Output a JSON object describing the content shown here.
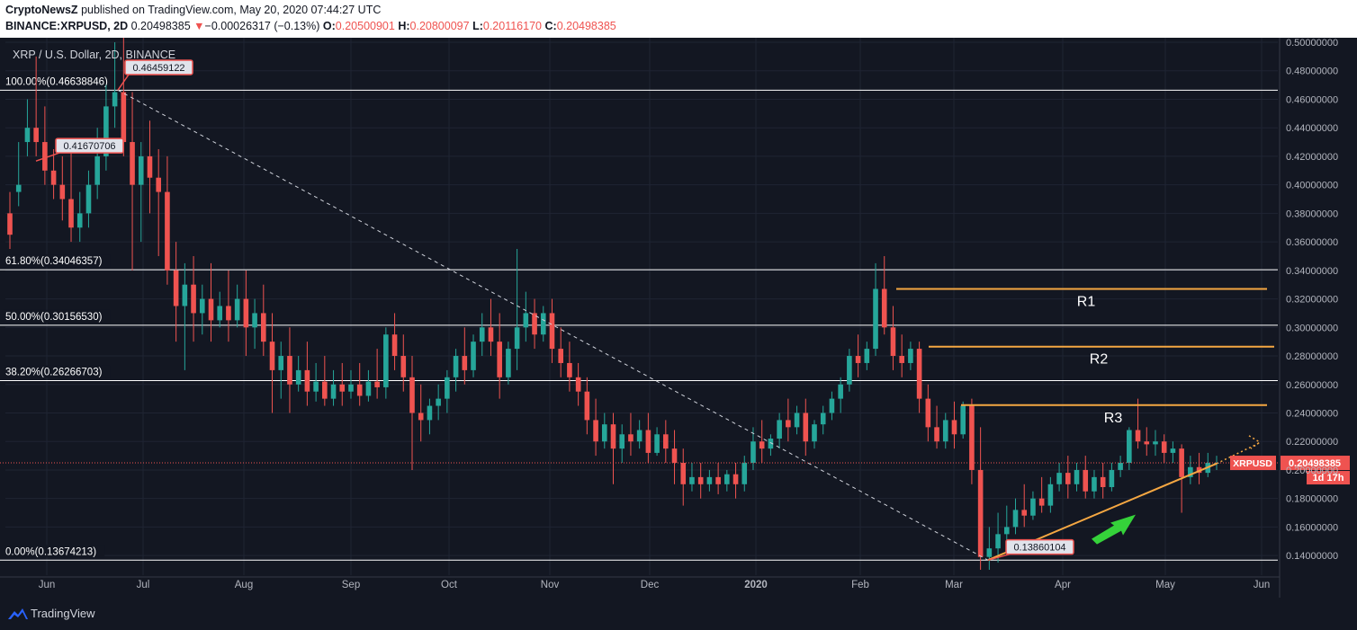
{
  "header": {
    "author": "CryptoNewsZ",
    "published_text": "published on TradingView.com, May 20, 2020 07:44:27 UTC",
    "symbol_line": "BINANCE:XRPUSD, 2D",
    "last_price": "0.20498385",
    "change_arrow": "▼",
    "change": "−0.00026317 (−0.13%)",
    "o_label": "O:",
    "o_value": "0.20500901",
    "h_label": "H:",
    "h_value": "0.20800097",
    "l_label": "L:",
    "l_value": "0.20116170",
    "c_label": "C:",
    "c_value": "0.20498385"
  },
  "chart_title": "XRP / U.S. Dollar, 2D, BINANCE",
  "footer": {
    "brand": "TradingView",
    "logo_icon": "tradingview-logo-icon"
  },
  "colors": {
    "background": "#131722",
    "up": "#26a69a",
    "down": "#ef5350",
    "fib": "#ffffff",
    "resistance": "#f5a742",
    "arrow": "#35d23a"
  },
  "chart_data": {
    "type": "candlestick",
    "symbol": "XRPUSD",
    "timeframe": "2D",
    "ylim": [
      0.13,
      0.5
    ],
    "y_ticks": [
      "0.14000000",
      "0.16000000",
      "0.18000000",
      "0.20000000",
      "0.22000000",
      "0.24000000",
      "0.26000000",
      "0.28000000",
      "0.30000000",
      "0.32000000",
      "0.34000000",
      "0.36000000",
      "0.38000000",
      "0.40000000",
      "0.42000000",
      "0.44000000",
      "0.46000000",
      "0.48000000",
      "0.50000000"
    ],
    "x_ticks": [
      "Jun",
      "Jul",
      "Aug",
      "Sep",
      "Oct",
      "Nov",
      "Dec",
      "2020",
      "Feb",
      "Mar",
      "Apr",
      "May",
      "Jun"
    ],
    "grid": true,
    "fib_levels": [
      {
        "label": "100.00%(0.46638846)",
        "value": 0.46638846
      },
      {
        "label": "61.80%(0.34046357)",
        "value": 0.34046357
      },
      {
        "label": "50.00%(0.30156530)",
        "value": 0.3015653
      },
      {
        "label": "38.20%(0.26266703)",
        "value": 0.26266703
      },
      {
        "label": "0.00%(0.13674213)",
        "value": 0.13674213
      }
    ],
    "resistance_levels": [
      {
        "name": "R1",
        "value": 0.327
      },
      {
        "name": "R2",
        "value": 0.2865
      },
      {
        "name": "R3",
        "value": 0.2455
      }
    ],
    "price_labels": [
      {
        "text": "0.46459122",
        "value": 0.46459122
      },
      {
        "text": "0.41670706",
        "value": 0.41670706
      },
      {
        "text": "0.13860104",
        "value": 0.13860104
      }
    ],
    "current_price": {
      "symbol": "XRPUSD",
      "price": "0.20498385",
      "countdown": "1d 17h",
      "value": 0.20498385
    },
    "candles": [
      [
        0.38,
        0.395,
        0.365,
        0.355
      ],
      [
        0.395,
        0.43,
        0.4,
        0.385
      ],
      [
        0.43,
        0.46,
        0.44,
        0.42
      ],
      [
        0.44,
        0.49,
        0.43,
        0.42
      ],
      [
        0.43,
        0.455,
        0.41,
        0.4
      ],
      [
        0.41,
        0.425,
        0.4,
        0.39
      ],
      [
        0.4,
        0.42,
        0.39,
        0.375
      ],
      [
        0.39,
        0.43,
        0.37,
        0.36
      ],
      [
        0.37,
        0.395,
        0.38,
        0.36
      ],
      [
        0.38,
        0.41,
        0.4,
        0.37
      ],
      [
        0.4,
        0.44,
        0.42,
        0.39
      ],
      [
        0.42,
        0.47,
        0.455,
        0.41
      ],
      [
        0.455,
        0.5,
        0.465,
        0.44
      ],
      [
        0.465,
        0.51,
        0.43,
        0.42
      ],
      [
        0.43,
        0.465,
        0.4,
        0.34
      ],
      [
        0.4,
        0.43,
        0.42,
        0.36
      ],
      [
        0.42,
        0.445,
        0.405,
        0.38
      ],
      [
        0.405,
        0.425,
        0.395,
        0.35
      ],
      [
        0.395,
        0.42,
        0.34,
        0.33
      ],
      [
        0.34,
        0.36,
        0.315,
        0.29
      ],
      [
        0.315,
        0.345,
        0.33,
        0.27
      ],
      [
        0.33,
        0.35,
        0.31,
        0.29
      ],
      [
        0.31,
        0.33,
        0.32,
        0.295
      ],
      [
        0.32,
        0.345,
        0.305,
        0.29
      ],
      [
        0.305,
        0.325,
        0.315,
        0.3
      ],
      [
        0.315,
        0.34,
        0.305,
        0.29
      ],
      [
        0.305,
        0.33,
        0.32,
        0.3
      ],
      [
        0.32,
        0.34,
        0.3,
        0.28
      ],
      [
        0.3,
        0.32,
        0.31,
        0.285
      ],
      [
        0.31,
        0.33,
        0.29,
        0.28
      ],
      [
        0.29,
        0.31,
        0.27,
        0.24
      ],
      [
        0.27,
        0.29,
        0.28,
        0.25
      ],
      [
        0.28,
        0.3,
        0.26,
        0.24
      ],
      [
        0.26,
        0.28,
        0.27,
        0.255
      ],
      [
        0.27,
        0.29,
        0.255,
        0.245
      ],
      [
        0.255,
        0.275,
        0.262,
        0.248
      ],
      [
        0.262,
        0.28,
        0.25,
        0.245
      ],
      [
        0.25,
        0.27,
        0.26,
        0.245
      ],
      [
        0.26,
        0.275,
        0.255,
        0.245
      ],
      [
        0.255,
        0.27,
        0.26,
        0.25
      ],
      [
        0.26,
        0.275,
        0.252,
        0.245
      ],
      [
        0.252,
        0.27,
        0.262,
        0.248
      ],
      [
        0.262,
        0.285,
        0.258,
        0.25
      ],
      [
        0.258,
        0.3,
        0.295,
        0.25
      ],
      [
        0.295,
        0.31,
        0.28,
        0.27
      ],
      [
        0.28,
        0.295,
        0.265,
        0.255
      ],
      [
        0.265,
        0.28,
        0.24,
        0.2
      ],
      [
        0.24,
        0.26,
        0.235,
        0.22
      ],
      [
        0.235,
        0.25,
        0.245,
        0.225
      ],
      [
        0.245,
        0.26,
        0.25,
        0.235
      ],
      [
        0.25,
        0.27,
        0.265,
        0.24
      ],
      [
        0.265,
        0.285,
        0.28,
        0.255
      ],
      [
        0.28,
        0.3,
        0.27,
        0.26
      ],
      [
        0.27,
        0.295,
        0.29,
        0.265
      ],
      [
        0.29,
        0.31,
        0.3,
        0.28
      ],
      [
        0.3,
        0.32,
        0.29,
        0.28
      ],
      [
        0.29,
        0.31,
        0.265,
        0.25
      ],
      [
        0.265,
        0.29,
        0.285,
        0.26
      ],
      [
        0.285,
        0.355,
        0.3,
        0.27
      ],
      [
        0.3,
        0.325,
        0.31,
        0.29
      ],
      [
        0.31,
        0.32,
        0.295,
        0.285
      ],
      [
        0.295,
        0.315,
        0.31,
        0.29
      ],
      [
        0.31,
        0.32,
        0.285,
        0.275
      ],
      [
        0.285,
        0.3,
        0.275,
        0.265
      ],
      [
        0.275,
        0.29,
        0.265,
        0.255
      ],
      [
        0.265,
        0.275,
        0.255,
        0.245
      ],
      [
        0.255,
        0.265,
        0.235,
        0.225
      ],
      [
        0.235,
        0.25,
        0.22,
        0.21
      ],
      [
        0.22,
        0.24,
        0.232,
        0.215
      ],
      [
        0.232,
        0.24,
        0.215,
        0.19
      ],
      [
        0.215,
        0.232,
        0.225,
        0.205
      ],
      [
        0.225,
        0.24,
        0.22,
        0.21
      ],
      [
        0.22,
        0.235,
        0.228,
        0.215
      ],
      [
        0.228,
        0.24,
        0.212,
        0.205
      ],
      [
        0.212,
        0.23,
        0.225,
        0.21
      ],
      [
        0.225,
        0.235,
        0.215,
        0.205
      ],
      [
        0.215,
        0.228,
        0.205,
        0.19
      ],
      [
        0.205,
        0.215,
        0.19,
        0.175
      ],
      [
        0.19,
        0.205,
        0.195,
        0.185
      ],
      [
        0.195,
        0.205,
        0.19,
        0.18
      ],
      [
        0.19,
        0.2,
        0.195,
        0.185
      ],
      [
        0.195,
        0.205,
        0.19,
        0.183
      ],
      [
        0.19,
        0.2,
        0.197,
        0.185
      ],
      [
        0.197,
        0.205,
        0.19,
        0.18
      ],
      [
        0.19,
        0.21,
        0.205,
        0.185
      ],
      [
        0.205,
        0.23,
        0.22,
        0.2
      ],
      [
        0.22,
        0.235,
        0.215,
        0.205
      ],
      [
        0.215,
        0.225,
        0.222,
        0.21
      ],
      [
        0.222,
        0.24,
        0.235,
        0.215
      ],
      [
        0.235,
        0.25,
        0.23,
        0.22
      ],
      [
        0.23,
        0.245,
        0.24,
        0.225
      ],
      [
        0.24,
        0.25,
        0.22,
        0.21
      ],
      [
        0.22,
        0.235,
        0.232,
        0.215
      ],
      [
        0.232,
        0.245,
        0.24,
        0.225
      ],
      [
        0.24,
        0.255,
        0.25,
        0.235
      ],
      [
        0.25,
        0.265,
        0.26,
        0.24
      ],
      [
        0.26,
        0.285,
        0.28,
        0.255
      ],
      [
        0.28,
        0.295,
        0.275,
        0.265
      ],
      [
        0.275,
        0.29,
        0.285,
        0.27
      ],
      [
        0.285,
        0.345,
        0.327,
        0.28
      ],
      [
        0.327,
        0.35,
        0.3,
        0.295
      ],
      [
        0.3,
        0.315,
        0.28,
        0.27
      ],
      [
        0.28,
        0.295,
        0.275,
        0.265
      ],
      [
        0.275,
        0.29,
        0.285,
        0.27
      ],
      [
        0.285,
        0.29,
        0.25,
        0.24
      ],
      [
        0.25,
        0.26,
        0.23,
        0.22
      ],
      [
        0.23,
        0.245,
        0.22,
        0.215
      ],
      [
        0.22,
        0.24,
        0.235,
        0.215
      ],
      [
        0.235,
        0.248,
        0.225,
        0.215
      ],
      [
        0.225,
        0.248,
        0.245,
        0.222
      ],
      [
        0.245,
        0.25,
        0.2,
        0.19
      ],
      [
        0.2,
        0.23,
        0.139,
        0.13
      ],
      [
        0.139,
        0.16,
        0.145,
        0.13
      ],
      [
        0.145,
        0.17,
        0.155,
        0.135
      ],
      [
        0.155,
        0.175,
        0.16,
        0.145
      ],
      [
        0.16,
        0.18,
        0.172,
        0.155
      ],
      [
        0.172,
        0.19,
        0.168,
        0.16
      ],
      [
        0.168,
        0.185,
        0.18,
        0.165
      ],
      [
        0.18,
        0.195,
        0.175,
        0.17
      ],
      [
        0.175,
        0.195,
        0.19,
        0.17
      ],
      [
        0.19,
        0.205,
        0.198,
        0.185
      ],
      [
        0.198,
        0.21,
        0.19,
        0.18
      ],
      [
        0.19,
        0.205,
        0.2,
        0.185
      ],
      [
        0.2,
        0.21,
        0.185,
        0.18
      ],
      [
        0.185,
        0.2,
        0.195,
        0.18
      ],
      [
        0.195,
        0.205,
        0.188,
        0.18
      ],
      [
        0.188,
        0.205,
        0.2,
        0.185
      ],
      [
        0.2,
        0.21,
        0.205,
        0.195
      ],
      [
        0.205,
        0.23,
        0.228,
        0.2
      ],
      [
        0.228,
        0.25,
        0.22,
        0.215
      ],
      [
        0.22,
        0.23,
        0.218,
        0.21
      ],
      [
        0.218,
        0.228,
        0.22,
        0.21
      ],
      [
        0.22,
        0.225,
        0.212,
        0.205
      ],
      [
        0.212,
        0.22,
        0.215,
        0.205
      ],
      [
        0.215,
        0.218,
        0.195,
        0.17
      ],
      [
        0.195,
        0.21,
        0.202,
        0.19
      ],
      [
        0.202,
        0.212,
        0.198,
        0.19
      ],
      [
        0.198,
        0.212,
        0.205,
        0.195
      ],
      [
        0.205,
        0.21,
        0.205,
        0.2
      ]
    ]
  }
}
